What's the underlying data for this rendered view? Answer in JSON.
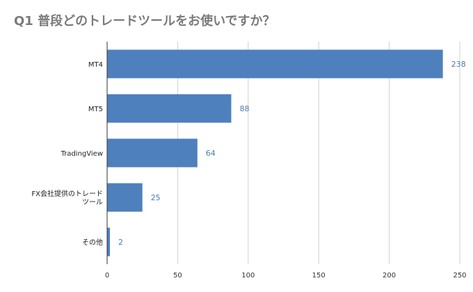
{
  "chart_data": {
    "type": "bar",
    "orientation": "horizontal",
    "title": "Q1 普段どのトレードツールをお使いですか？",
    "categories": [
      "MT4",
      "MT5",
      "TradingView",
      "FX会社提供のトレードツール",
      "その他"
    ],
    "category_label_lines": [
      [
        "MT4"
      ],
      [
        "MT5"
      ],
      [
        "TradingView"
      ],
      [
        "FX会社提供のトレード",
        "ツール"
      ],
      [
        "その他"
      ]
    ],
    "values": [
      238,
      88,
      64,
      25,
      2
    ],
    "data_labels": [
      "238",
      "88",
      "64",
      "25",
      "2"
    ],
    "xlim": [
      0,
      250
    ],
    "x_ticks": [
      0,
      50,
      100,
      150,
      200,
      250
    ],
    "x_tick_labels": [
      "0",
      "50",
      "100",
      "150",
      "200",
      "250"
    ],
    "grid": true,
    "legend": "none",
    "bar_color": "#4e80bd",
    "label_color": "#4a7ab8"
  }
}
